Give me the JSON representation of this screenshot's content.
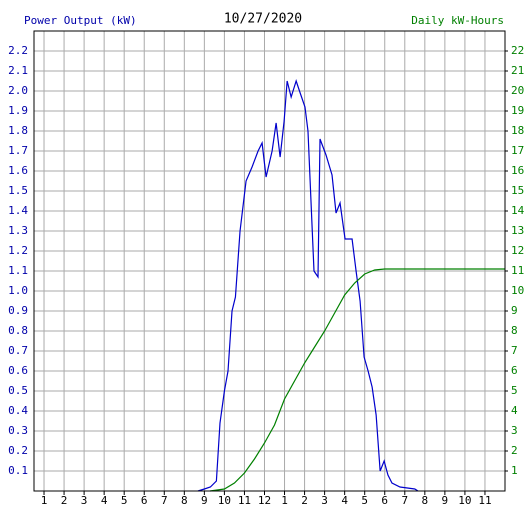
{
  "chart_data": {
    "type": "line",
    "title": "10/27/2020",
    "ylabel": "Power Output (kW)",
    "y2label": "Daily kW-Hours",
    "xlim": [
      0.5,
      24
    ],
    "xticks": [
      {
        "value": 1,
        "label": "1"
      },
      {
        "value": 2,
        "label": "2"
      },
      {
        "value": 3,
        "label": "3"
      },
      {
        "value": 4,
        "label": "4"
      },
      {
        "value": 5,
        "label": "5"
      },
      {
        "value": 6,
        "label": "6"
      },
      {
        "value": 7,
        "label": "7"
      },
      {
        "value": 8,
        "label": "8"
      },
      {
        "value": 9,
        "label": "9"
      },
      {
        "value": 10,
        "label": "10"
      },
      {
        "value": 11,
        "label": "11"
      },
      {
        "value": 12,
        "label": "12"
      },
      {
        "value": 13,
        "label": "1"
      },
      {
        "value": 14,
        "label": "2"
      },
      {
        "value": 15,
        "label": "3"
      },
      {
        "value": 16,
        "label": "4"
      },
      {
        "value": 17,
        "label": "5"
      },
      {
        "value": 18,
        "label": "6"
      },
      {
        "value": 19,
        "label": "7"
      },
      {
        "value": 20,
        "label": "8"
      },
      {
        "value": 21,
        "label": "9"
      },
      {
        "value": 22,
        "label": "10"
      },
      {
        "value": 23,
        "label": "11"
      }
    ],
    "ylim": [
      0,
      2.3
    ],
    "yticks": [
      0.1,
      0.2,
      0.3,
      0.4,
      0.5,
      0.6,
      0.7,
      0.8,
      0.9,
      {
        "value": 1,
        "label": "1.0"
      },
      1.1,
      1.2,
      1.3,
      1.4,
      1.5,
      1.6,
      1.7,
      1.8,
      1.9,
      {
        "value": 2,
        "label": "2.0"
      },
      2.1,
      2.2
    ],
    "y2lim": [
      0,
      23
    ],
    "y2ticks": [
      1,
      2,
      3,
      4,
      5,
      6,
      7,
      8,
      9,
      10,
      11,
      12,
      13,
      14,
      15,
      16,
      17,
      18,
      19,
      20,
      21,
      22
    ],
    "grid": true,
    "ylabel_color": "#0000aa",
    "y2label_color": "#008000",
    "series": [
      {
        "name": "Power Output (kW)",
        "color": "#0000cc",
        "axis": "y",
        "x": [
          8.68,
          9.0,
          9.3,
          9.6,
          9.78,
          10.0,
          10.18,
          10.38,
          10.55,
          10.78,
          11.08,
          11.38,
          11.68,
          11.88,
          12.08,
          12.38,
          12.58,
          12.78,
          12.98,
          13.13,
          13.33,
          13.58,
          13.78,
          14.02,
          14.17,
          14.47,
          14.67,
          14.77,
          15.07,
          15.37,
          15.57,
          15.77,
          16.02,
          16.37,
          16.57,
          16.77,
          16.97,
          17.17,
          17.37,
          17.57,
          17.77,
          17.97,
          18.16,
          18.36,
          18.76,
          19.5,
          19.66
        ],
        "values": [
          0,
          0.01,
          0.02,
          0.05,
          0.34,
          0.5,
          0.6,
          0.9,
          0.97,
          1.3,
          1.55,
          1.62,
          1.7,
          1.74,
          1.57,
          1.7,
          1.84,
          1.67,
          1.85,
          2.05,
          1.97,
          2.05,
          1.99,
          1.92,
          1.8,
          1.1,
          1.07,
          1.76,
          1.68,
          1.58,
          1.39,
          1.44,
          1.26,
          1.26,
          1.1,
          0.95,
          0.67,
          0.6,
          0.52,
          0.38,
          0.1,
          0.15,
          0.08,
          0.04,
          0.02,
          0.01,
          0
        ]
      },
      {
        "name": "Daily kW-Hours",
        "color": "#008000",
        "axis": "y2",
        "x": [
          9.28,
          10.0,
          10.5,
          11.0,
          11.5,
          12.0,
          12.5,
          13.0,
          13.5,
          14.0,
          14.5,
          15.0,
          15.5,
          16.0,
          16.5,
          17.0,
          17.5,
          18.0,
          24.0
        ],
        "values": [
          0,
          0.1,
          0.4,
          0.9,
          1.6,
          2.4,
          3.3,
          4.6,
          5.5,
          6.4,
          7.2,
          8.0,
          8.9,
          9.8,
          10.4,
          10.85,
          11.05,
          11.1,
          11.1
        ]
      }
    ]
  }
}
